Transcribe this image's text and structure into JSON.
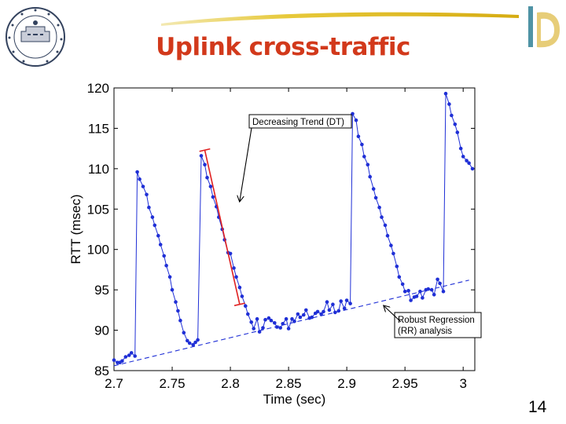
{
  "slide": {
    "title": "Uplink cross-traffic",
    "page_number": "14",
    "title_color": "#d2391b",
    "logo_left": "seal-logo",
    "logo_right": "institution-logo"
  },
  "chart_data": {
    "type": "line",
    "xlabel": "Time (sec)",
    "ylabel": "RTT (msec)",
    "xlim": [
      2.7,
      3.01
    ],
    "ylim": [
      85,
      120
    ],
    "x_ticks": [
      {
        "value": 2.7,
        "label": "2.7"
      },
      {
        "value": 2.75,
        "label": "2.75"
      },
      {
        "value": 2.8,
        "label": "2.8"
      },
      {
        "value": 2.85,
        "label": "2.85"
      },
      {
        "value": 2.9,
        "label": "2.9"
      },
      {
        "value": 2.95,
        "label": "2.95"
      },
      {
        "value": 3.0,
        "label": "3"
      }
    ],
    "y_ticks": [
      {
        "value": 85,
        "label": "85"
      },
      {
        "value": 90,
        "label": "90"
      },
      {
        "value": 95,
        "label": "95"
      },
      {
        "value": 100,
        "label": "100"
      },
      {
        "value": 105,
        "label": "105"
      },
      {
        "value": 110,
        "label": "110"
      },
      {
        "value": 115,
        "label": "115"
      },
      {
        "value": 120,
        "label": "120"
      }
    ],
    "grid": false,
    "series_color": "#1f2fd6",
    "series": [
      {
        "x": [
          2.7,
          2.703,
          2.705,
          2.707,
          2.71,
          2.713,
          2.715,
          2.718,
          2.72,
          2.722,
          2.725,
          2.728,
          2.73,
          2.733,
          2.735,
          2.738,
          2.74,
          2.743,
          2.745,
          2.748,
          2.75,
          2.753,
          2.755,
          2.757,
          2.76,
          2.763,
          2.765,
          2.768,
          2.77,
          2.772,
          2.775,
          2.778,
          2.78,
          2.783,
          2.785,
          2.788,
          2.79,
          2.793,
          2.795,
          2.798,
          2.8,
          2.803,
          2.805,
          2.808,
          2.81,
          2.813,
          2.815,
          2.818,
          2.82,
          2.823,
          2.825,
          2.828,
          2.83,
          2.833,
          2.835,
          2.838,
          2.84,
          2.843,
          2.845,
          2.848,
          2.85,
          2.853,
          2.855,
          2.858,
          2.86,
          2.863,
          2.865,
          2.868,
          2.87,
          2.873,
          2.875,
          2.878,
          2.88,
          2.883,
          2.885,
          2.888,
          2.89,
          2.893,
          2.895,
          2.898,
          2.9,
          2.903,
          2.905,
          2.908,
          2.91,
          2.913,
          2.915,
          2.918,
          2.92,
          2.923,
          2.925,
          2.928,
          2.93,
          2.933,
          2.935,
          2.938,
          2.94,
          2.943,
          2.945,
          2.948,
          2.95,
          2.953,
          2.955,
          2.958,
          2.96,
          2.963,
          2.965,
          2.968,
          2.97,
          2.973,
          2.975,
          2.978,
          2.98,
          2.983,
          2.985,
          2.988,
          2.99,
          2.993,
          2.995,
          2.998,
          3.0,
          3.003,
          3.005,
          3.008
        ],
        "y": [
          86.3,
          86.0,
          86.0,
          86.2,
          86.7,
          86.9,
          87.2,
          86.8,
          109.6,
          108.7,
          107.8,
          106.8,
          105.2,
          104.0,
          103.0,
          101.7,
          100.6,
          99.2,
          98.0,
          96.6,
          95.0,
          93.5,
          92.4,
          91.2,
          89.7,
          88.7,
          88.4,
          88.2,
          88.5,
          88.8,
          111.6,
          110.5,
          108.9,
          107.8,
          106.5,
          105.3,
          104.0,
          102.5,
          101.2,
          99.6,
          99.5,
          97.7,
          96.6,
          95.3,
          94.2,
          93.0,
          92.0,
          91.0,
          90.2,
          91.4,
          89.8,
          90.3,
          91.3,
          91.5,
          91.2,
          90.9,
          90.4,
          90.3,
          90.8,
          91.4,
          90.2,
          91.4,
          91.1,
          92.0,
          91.6,
          91.9,
          92.5,
          91.5,
          91.6,
          92.1,
          92.3,
          92.0,
          92.3,
          93.5,
          92.5,
          93.2,
          92.2,
          92.4,
          93.6,
          92.7,
          93.7,
          93.3,
          116.8,
          116.0,
          114.0,
          113.0,
          111.5,
          110.5,
          109.0,
          107.5,
          106.4,
          105.2,
          104.0,
          103.0,
          101.7,
          100.5,
          99.5,
          97.9,
          96.6,
          95.7,
          94.8,
          94.9,
          93.7,
          94.1,
          94.2,
          94.8,
          94.0,
          95.0,
          95.1,
          95.0,
          94.4,
          96.3,
          95.8,
          94.8,
          119.3,
          118.0,
          116.6,
          115.5,
          114.5,
          112.5,
          111.5,
          111.0,
          110.7,
          110.0
        ]
      }
    ],
    "trend_line": {
      "x": [
        2.7,
        3.005
      ],
      "y": [
        85.6,
        96.2
      ]
    },
    "dt_segment": {
      "x": [
        2.778,
        2.808
      ],
      "y": [
        112.3,
        93.2
      ]
    },
    "annotations": [
      {
        "text": "Decreasing Trend (DT)",
        "point": [
          2.808,
          106.0
        ]
      },
      {
        "text": [
          "Robust Regression",
          "(RR) analysis"
        ],
        "point": [
          2.932,
          93.0
        ]
      }
    ]
  }
}
